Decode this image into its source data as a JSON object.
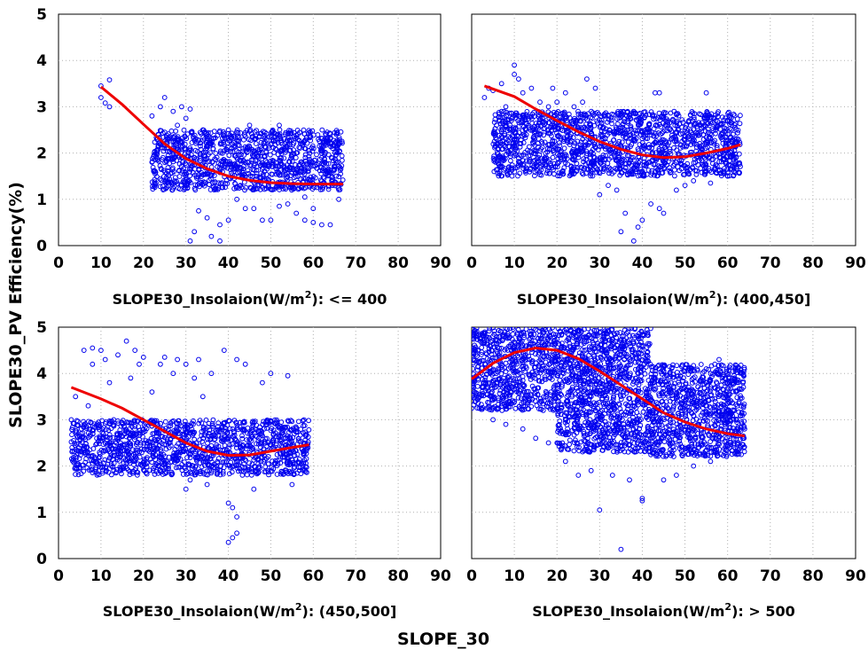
{
  "chart_data": {
    "type": "scatter",
    "ylabel": "SLOPE30_PV Efficiency(%)",
    "xlabel": "SLOPE_30",
    "xlim": [
      0,
      90
    ],
    "ylim": [
      0,
      5
    ],
    "x_ticks": [
      "0",
      "10",
      "20",
      "30",
      "40",
      "50",
      "60",
      "70",
      "80",
      "90"
    ],
    "y_ticks": [
      "0",
      "1",
      "2",
      "3",
      "4",
      "5"
    ],
    "grid": true,
    "colors": {
      "points": "#0000ee",
      "fit": "#ee0000"
    },
    "panels": [
      {
        "subtitle_prefix": "SLOPE30_Insolaion(W/m",
        "subtitle_sup": "2",
        "subtitle_suffix": "): <= 400",
        "fit_curve": [
          [
            10,
            3.43
          ],
          [
            15,
            3.05
          ],
          [
            20,
            2.62
          ],
          [
            25,
            2.2
          ],
          [
            30,
            1.88
          ],
          [
            35,
            1.66
          ],
          [
            40,
            1.5
          ],
          [
            45,
            1.41
          ],
          [
            50,
            1.36
          ],
          [
            55,
            1.34
          ],
          [
            60,
            1.33
          ],
          [
            67,
            1.33
          ]
        ],
        "scatter_bands": [
          [
            22,
            67,
            1.2,
            2.5
          ]
        ],
        "points": [
          [
            10,
            3.45
          ],
          [
            10,
            3.2
          ],
          [
            11,
            3.08
          ],
          [
            12,
            3.58
          ],
          [
            12,
            3.0
          ],
          [
            22,
            2.8
          ],
          [
            24,
            3.0
          ],
          [
            25,
            3.2
          ],
          [
            27,
            2.9
          ],
          [
            28,
            2.6
          ],
          [
            29,
            3.0
          ],
          [
            30,
            2.75
          ],
          [
            31,
            2.95
          ],
          [
            31,
            0.1
          ],
          [
            32,
            0.3
          ],
          [
            33,
            0.75
          ],
          [
            35,
            0.6
          ],
          [
            36,
            0.2
          ],
          [
            38,
            0.1
          ],
          [
            38,
            0.45
          ],
          [
            40,
            0.55
          ],
          [
            42,
            1.0
          ],
          [
            44,
            0.8
          ],
          [
            46,
            0.8
          ],
          [
            48,
            0.55
          ],
          [
            50,
            0.55
          ],
          [
            52,
            0.85
          ],
          [
            54,
            0.9
          ],
          [
            56,
            0.7
          ],
          [
            58,
            0.55
          ],
          [
            60,
            0.5
          ],
          [
            62,
            0.45
          ],
          [
            64,
            0.45
          ],
          [
            60,
            0.8
          ],
          [
            58,
            1.05
          ],
          [
            40,
            2.5
          ],
          [
            45,
            2.6
          ],
          [
            52,
            2.6
          ],
          [
            50,
            2.2
          ],
          [
            56,
            2.0
          ],
          [
            62,
            1.9
          ],
          [
            65,
            1.7
          ],
          [
            66,
            1.0
          ],
          [
            34,
            2.5
          ],
          [
            36,
            2.2
          ]
        ]
      },
      {
        "subtitle_prefix": "SLOPE30_Insolaion(W/m",
        "subtitle_sup": "2",
        "subtitle_suffix": "): (400,450]",
        "fit_curve": [
          [
            3,
            3.45
          ],
          [
            10,
            3.22
          ],
          [
            15,
            2.95
          ],
          [
            20,
            2.7
          ],
          [
            25,
            2.46
          ],
          [
            30,
            2.25
          ],
          [
            35,
            2.08
          ],
          [
            40,
            1.96
          ],
          [
            45,
            1.9
          ],
          [
            50,
            1.92
          ],
          [
            55,
            2.0
          ],
          [
            60,
            2.1
          ],
          [
            63,
            2.18
          ]
        ],
        "scatter_bands": [
          [
            5,
            63,
            1.5,
            2.9
          ]
        ],
        "points": [
          [
            3,
            3.2
          ],
          [
            4,
            3.4
          ],
          [
            5,
            3.35
          ],
          [
            7,
            3.5
          ],
          [
            8,
            3.0
          ],
          [
            9,
            2.6
          ],
          [
            10,
            3.7
          ],
          [
            10,
            3.9
          ],
          [
            11,
            3.6
          ],
          [
            12,
            3.3
          ],
          [
            14,
            3.4
          ],
          [
            16,
            3.1
          ],
          [
            18,
            3.0
          ],
          [
            19,
            3.4
          ],
          [
            20,
            3.1
          ],
          [
            22,
            3.3
          ],
          [
            24,
            3.0
          ],
          [
            26,
            3.1
          ],
          [
            27,
            3.6
          ],
          [
            29,
            3.4
          ],
          [
            30,
            1.1
          ],
          [
            32,
            1.3
          ],
          [
            34,
            1.2
          ],
          [
            35,
            0.3
          ],
          [
            36,
            0.7
          ],
          [
            38,
            0.1
          ],
          [
            39,
            0.4
          ],
          [
            40,
            0.55
          ],
          [
            42,
            0.9
          ],
          [
            44,
            0.8
          ],
          [
            45,
            0.7
          ],
          [
            43,
            3.3
          ],
          [
            44,
            3.3
          ],
          [
            55,
            3.3
          ],
          [
            50,
            1.3
          ],
          [
            52,
            1.4
          ],
          [
            48,
            1.2
          ],
          [
            56,
            1.35
          ],
          [
            60,
            1.5
          ],
          [
            62,
            1.8
          ],
          [
            38,
            2.9
          ],
          [
            46,
            2.7
          ]
        ]
      },
      {
        "subtitle_prefix": "SLOPE30_Insolaion(W/m",
        "subtitle_sup": "2",
        "subtitle_suffix": "): (450,500]",
        "fit_curve": [
          [
            3,
            3.7
          ],
          [
            10,
            3.45
          ],
          [
            15,
            3.25
          ],
          [
            20,
            3.0
          ],
          [
            25,
            2.75
          ],
          [
            30,
            2.5
          ],
          [
            35,
            2.32
          ],
          [
            40,
            2.23
          ],
          [
            45,
            2.24
          ],
          [
            50,
            2.32
          ],
          [
            55,
            2.4
          ],
          [
            59,
            2.46
          ]
        ],
        "scatter_bands": [
          [
            3,
            59,
            1.8,
            3.0
          ]
        ],
        "points": [
          [
            3,
            3.0
          ],
          [
            4,
            3.5
          ],
          [
            6,
            4.5
          ],
          [
            7,
            3.3
          ],
          [
            8,
            4.2
          ],
          [
            8,
            4.55
          ],
          [
            9,
            2.6
          ],
          [
            10,
            4.5
          ],
          [
            11,
            4.3
          ],
          [
            12,
            2.5
          ],
          [
            12,
            3.8
          ],
          [
            14,
            4.4
          ],
          [
            16,
            4.7
          ],
          [
            17,
            3.9
          ],
          [
            18,
            4.5
          ],
          [
            19,
            4.2
          ],
          [
            20,
            4.35
          ],
          [
            22,
            3.6
          ],
          [
            24,
            4.2
          ],
          [
            25,
            4.35
          ],
          [
            27,
            4.0
          ],
          [
            28,
            4.3
          ],
          [
            30,
            4.2
          ],
          [
            30,
            1.5
          ],
          [
            31,
            1.7
          ],
          [
            32,
            3.9
          ],
          [
            33,
            4.3
          ],
          [
            35,
            1.6
          ],
          [
            36,
            4.0
          ],
          [
            38,
            1.9
          ],
          [
            39,
            4.5
          ],
          [
            40,
            1.2
          ],
          [
            41,
            1.1
          ],
          [
            42,
            0.9
          ],
          [
            40,
            0.35
          ],
          [
            41,
            0.45
          ],
          [
            42,
            0.55
          ],
          [
            42,
            4.3
          ],
          [
            44,
            4.2
          ],
          [
            46,
            1.5
          ],
          [
            48,
            3.8
          ],
          [
            50,
            4.0
          ],
          [
            54,
            3.95
          ],
          [
            55,
            1.6
          ],
          [
            58,
            1.9
          ],
          [
            34,
            3.5
          ],
          [
            26,
            2.5
          ]
        ]
      },
      {
        "subtitle_prefix": "SLOPE30_Insolaion(W/m",
        "subtitle_sup": "2",
        "subtitle_suffix": "): > 500",
        "fit_curve": [
          [
            0,
            3.88
          ],
          [
            5,
            4.22
          ],
          [
            10,
            4.45
          ],
          [
            15,
            4.55
          ],
          [
            20,
            4.5
          ],
          [
            25,
            4.32
          ],
          [
            30,
            4.05
          ],
          [
            35,
            3.75
          ],
          [
            40,
            3.45
          ],
          [
            45,
            3.15
          ],
          [
            50,
            2.95
          ],
          [
            55,
            2.8
          ],
          [
            60,
            2.7
          ],
          [
            64,
            2.65
          ]
        ],
        "scatter_bands": [
          [
            0,
            20,
            3.2,
            5.0
          ],
          [
            20,
            42,
            2.3,
            5.0
          ],
          [
            42,
            64,
            2.2,
            4.2
          ]
        ],
        "points": [
          [
            25,
            1.8
          ],
          [
            28,
            1.9
          ],
          [
            30,
            1.05
          ],
          [
            33,
            1.8
          ],
          [
            35,
            0.2
          ],
          [
            37,
            1.7
          ],
          [
            40,
            1.3
          ],
          [
            40,
            1.25
          ],
          [
            45,
            1.7
          ],
          [
            48,
            1.8
          ],
          [
            52,
            2.0
          ],
          [
            56,
            2.1
          ],
          [
            58,
            4.3
          ],
          [
            55,
            4.1
          ],
          [
            60,
            3.2
          ],
          [
            62,
            3.0
          ],
          [
            64,
            2.8
          ],
          [
            5,
            3.0
          ],
          [
            8,
            2.9
          ],
          [
            12,
            2.8
          ],
          [
            15,
            2.6
          ],
          [
            18,
            2.5
          ],
          [
            22,
            2.1
          ]
        ]
      }
    ]
  }
}
